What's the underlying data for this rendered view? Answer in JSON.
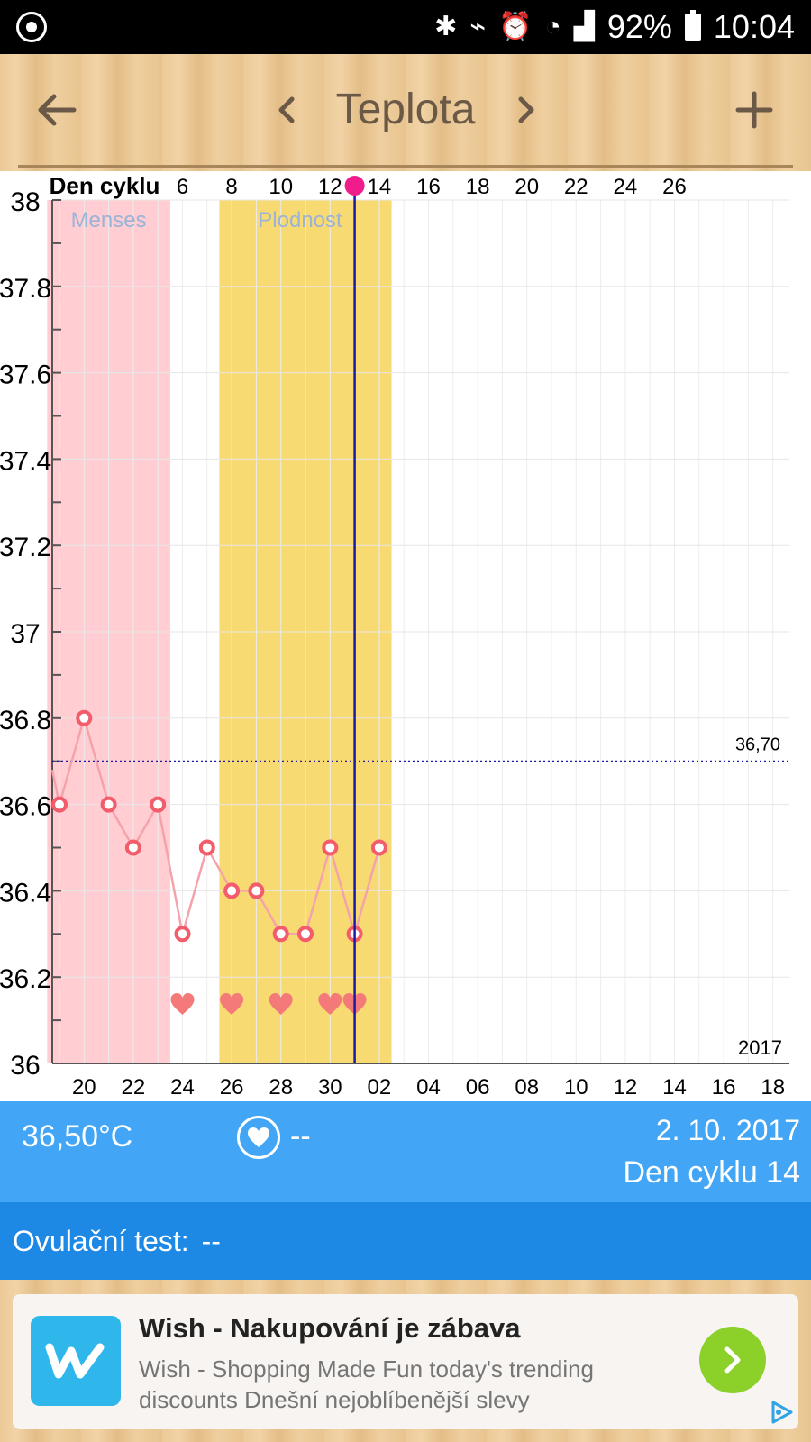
{
  "status_bar": {
    "battery": "92%",
    "time": "10:04"
  },
  "header": {
    "title": "Teplota"
  },
  "chart_data": {
    "type": "line",
    "top_axis_label": "Den cyklu",
    "top_ticks": [
      "6",
      "8",
      "10",
      "12",
      "14",
      "16",
      "18",
      "20",
      "22",
      "24",
      "26"
    ],
    "x_ticks": [
      "20",
      "22",
      "24",
      "26",
      "28",
      "30",
      "02",
      "04",
      "06",
      "08",
      "10",
      "12",
      "14",
      "16",
      "18"
    ],
    "y_ticks": [
      "36",
      "36.2",
      "36.4",
      "36.6",
      "36.8",
      "37",
      "37.2",
      "37.4",
      "37.6",
      "37.8",
      "38"
    ],
    "ylim": [
      36,
      38
    ],
    "year_label": "2017",
    "reference_line": {
      "value": 36.7,
      "label": "36,70"
    },
    "zones": [
      {
        "label": "Menses",
        "from_day": 1,
        "to_day": 5,
        "color": "#ffcdd2"
      },
      {
        "label": "Plodnost",
        "from_day": 8,
        "to_day": 14,
        "color": "#f8da72"
      }
    ],
    "series": [
      {
        "cycle_days": [
          1,
          2,
          3,
          4,
          5,
          6,
          7,
          8,
          9,
          10,
          11,
          12,
          13,
          14
        ],
        "dates": [
          "19.9.",
          "20.9.",
          "21.9.",
          "22.9.",
          "23.9.",
          "24.9.",
          "25.9.",
          "26.9.",
          "27.9.",
          "28.9.",
          "29.9.",
          "30.9.",
          "1.10.",
          "2.10."
        ],
        "values": [
          36.6,
          36.8,
          36.6,
          36.5,
          36.6,
          36.3,
          36.5,
          36.4,
          36.4,
          36.3,
          36.3,
          36.5,
          36.3,
          36.5
        ],
        "color": "#f25c6b"
      }
    ],
    "hearts_on_cycle_days": [
      6,
      8,
      10,
      12,
      13
    ],
    "selected_cycle_day": 13
  },
  "info": {
    "temperature": "36,50°C",
    "heart_value": "--",
    "date": "2. 10. 2017",
    "cycle_day": "Den cyklu 14"
  },
  "ovulation": {
    "label": "Ovulační test:",
    "value": "--"
  },
  "ad": {
    "title": "Wish - Nakupování je zábava",
    "text": "Wish - Shopping Made Fun today's trending discounts Dnešní nejoblíbenější slevy"
  },
  "colors": {
    "info_bg": "#42a5f5",
    "ovulation_bg": "#1e88e5",
    "marker": "#f25c6b",
    "selection_line": "#1a1aa6"
  }
}
